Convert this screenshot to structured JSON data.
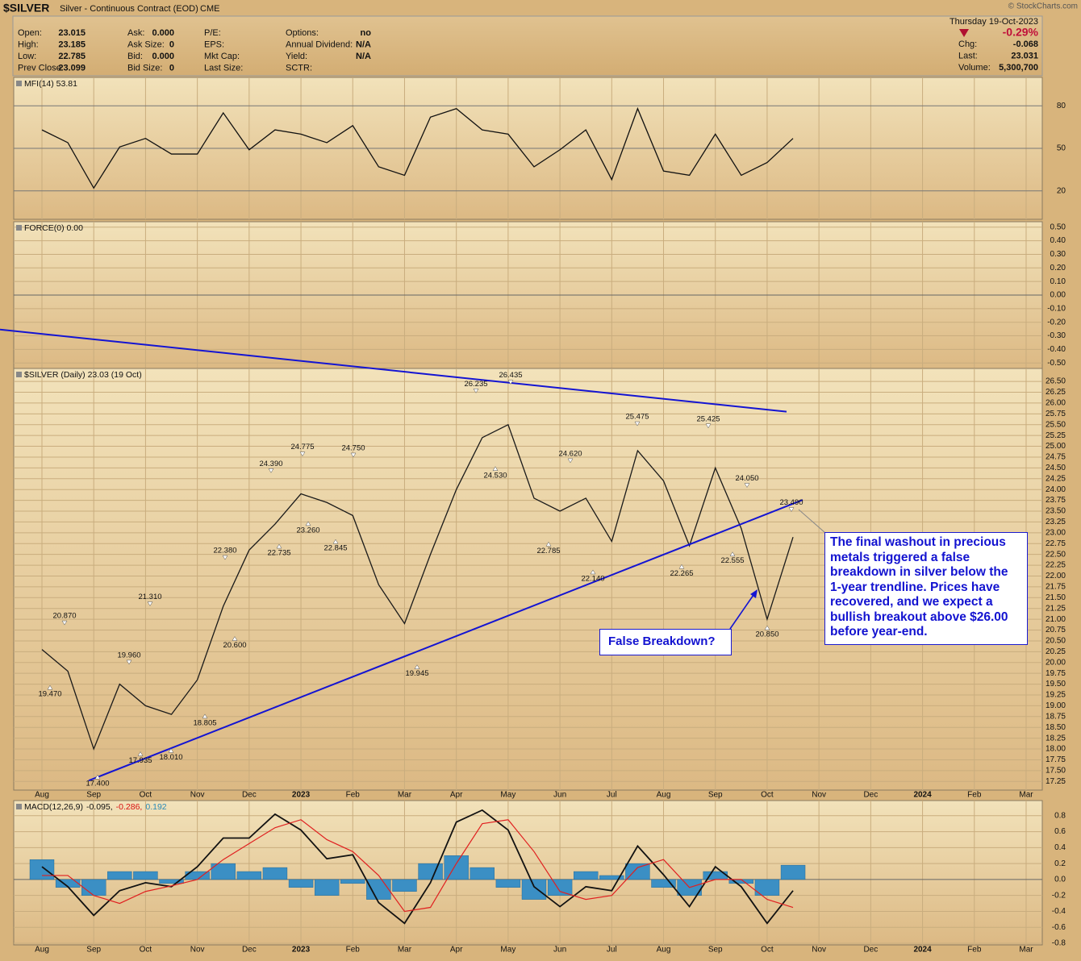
{
  "header": {
    "symbol": "$SILVER",
    "description": "Silver - Continuous Contract (EOD)",
    "exchange": "CME",
    "watermark": "© StockCharts.com",
    "date": "Thursday  19-Oct-2023",
    "change_pct": "-0.29%",
    "fields": [
      [
        {
          "label": "Open:",
          "value": "23.015"
        },
        {
          "label": "High:",
          "value": "23.185"
        },
        {
          "label": "Low:",
          "value": "22.785"
        },
        {
          "label": "Prev Close:",
          "value": "23.099"
        }
      ],
      [
        {
          "label": "Ask:",
          "value": "0.000"
        },
        {
          "label": "Ask Size:",
          "value": "0"
        },
        {
          "label": "Bid:",
          "value": "0.000"
        },
        {
          "label": "Bid Size:",
          "value": "0"
        }
      ],
      [
        {
          "label": "P/E:"
        },
        {
          "label": "EPS:"
        },
        {
          "label": "Mkt Cap:"
        },
        {
          "label": "Last Size:"
        }
      ],
      [
        {
          "label": "Options:",
          "value": "no"
        },
        {
          "label": "Annual Dividend:",
          "value": "N/A"
        },
        {
          "label": "Yield:",
          "value": "N/A"
        },
        {
          "label": "SCTR:"
        }
      ]
    ],
    "quote": [
      {
        "label": "Chg:",
        "value": "-0.068"
      },
      {
        "label": "Last:",
        "value": "23.031"
      },
      {
        "label": "Volume:",
        "value": "5,300,700"
      }
    ]
  },
  "chart_data": [
    {
      "type": "line",
      "title": "MFI(14) 53.81",
      "color": "#111111",
      "values": [
        63,
        54,
        22,
        51,
        57,
        46,
        46,
        75,
        49,
        63,
        60,
        54,
        66,
        37,
        31,
        72,
        78,
        63,
        60,
        37,
        49,
        63,
        28,
        78,
        34,
        31,
        60,
        31,
        40,
        57,
        null,
        null,
        null,
        null,
        null,
        null,
        null,
        null,
        null,
        null
      ],
      "ylim": [
        0,
        100
      ],
      "yticks": [
        20,
        50,
        80
      ],
      "grid": true
    },
    {
      "type": "line",
      "title": "FORCE(0) 0.00",
      "ylim": [
        -0.54,
        0.54
      ],
      "yticks": [
        {
          "value": 0.5,
          "label": "0.50"
        },
        {
          "value": 0.4,
          "label": "0.40"
        },
        {
          "value": 0.3,
          "label": "0.30"
        },
        {
          "value": 0.2,
          "label": "0.20"
        },
        {
          "value": 0.1,
          "label": "0.10"
        },
        {
          "value": 0,
          "label": "0.00"
        },
        {
          "value": -0.1,
          "label": "-0.10"
        },
        {
          "value": -0.2,
          "label": "-0.20"
        },
        {
          "value": -0.3,
          "label": "-0.30"
        },
        {
          "value": -0.4,
          "label": "-0.40"
        },
        {
          "value": -0.5,
          "label": "-0.50"
        }
      ],
      "grid": true
    },
    {
      "type": "line",
      "title": "$SILVER (Daily) 23.03 (19 Oct)",
      "color": "#1a1a1a",
      "categories": [
        "Aug",
        null,
        "Sep",
        null,
        "Oct",
        null,
        "Nov",
        null,
        "Dec",
        null,
        "2023",
        null,
        "Feb",
        null,
        "Mar",
        null,
        "Apr",
        null,
        "May",
        null,
        "Jun",
        null,
        "Jul",
        null,
        "Aug",
        null,
        "Sep",
        null,
        "Oct",
        null,
        "Nov",
        null,
        "Dec",
        null,
        "2024",
        null,
        "Feb",
        null,
        "Mar",
        null
      ],
      "values": [
        20.3,
        19.8,
        18.0,
        19.5,
        19.0,
        18.8,
        19.6,
        21.3,
        22.6,
        23.2,
        23.9,
        23.7,
        23.4,
        21.8,
        20.9,
        22.5,
        24.0,
        25.2,
        25.5,
        23.8,
        23.5,
        23.8,
        22.8,
        24.9,
        24.2,
        22.7,
        24.5,
        23.1,
        21.0,
        22.9,
        null,
        null,
        null,
        null,
        null,
        null,
        null,
        null,
        null,
        null
      ],
      "ylim": [
        17.05,
        26.8
      ],
      "yticks": [
        17.25,
        {
          "value": 17.5,
          "label": "17.50"
        },
        17.75,
        {
          "value": 18,
          "label": "18.00"
        },
        18.25,
        {
          "value": 18.5,
          "label": "18.50"
        },
        18.75,
        {
          "value": 19,
          "label": "19.00"
        },
        19.25,
        {
          "value": 19.5,
          "label": "19.50"
        },
        19.75,
        {
          "value": 20,
          "label": "20.00"
        },
        20.25,
        {
          "value": 20.5,
          "label": "20.50"
        },
        20.75,
        {
          "value": 21,
          "label": "21.00"
        },
        21.25,
        {
          "value": 21.5,
          "label": "21.50"
        },
        21.75,
        {
          "value": 22,
          "label": "22.00"
        },
        22.25,
        {
          "value": 22.5,
          "label": "22.50"
        },
        22.75,
        {
          "value": 23,
          "label": "23.00"
        },
        23.25,
        {
          "value": 23.5,
          "label": "23.50"
        },
        23.75,
        {
          "value": 24,
          "label": "24.00"
        },
        24.25,
        {
          "value": 24.5,
          "label": "24.50"
        },
        24.75,
        {
          "value": 25,
          "label": "25.00"
        },
        25.25,
        {
          "value": 25.5,
          "label": "25.50"
        },
        25.75,
        {
          "value": 26,
          "label": "26.00"
        },
        26.25,
        {
          "value": 26.5,
          "label": "26.50"
        }
      ],
      "grid": true,
      "annotations": [
        {
          "value": 20.87,
          "label": "20.870"
        },
        {
          "value": 19.47,
          "label": "19.470"
        },
        {
          "value": 19.96,
          "label": "19.960"
        },
        {
          "value": 21.31,
          "label": "21.310"
        },
        {
          "value": 17.4,
          "label": "17.400"
        },
        {
          "value": 17.935,
          "label": "17.935"
        },
        {
          "value": 18.01,
          "label": "18.010"
        },
        {
          "value": 18.805,
          "label": "18.805"
        },
        {
          "value": 20.6,
          "label": "20.600"
        },
        {
          "value": 22.38,
          "label": "22.380"
        },
        {
          "value": 24.39,
          "label": "24.390"
        },
        {
          "value": 22.735,
          "label": "22.735"
        },
        {
          "value": 24.775,
          "label": "24.775"
        },
        {
          "value": 23.26,
          "label": "23.260"
        },
        {
          "value": 24.75,
          "label": "24.750"
        },
        {
          "value": 22.845,
          "label": "22.845"
        },
        {
          "value": 19.945,
          "label": "19.945"
        },
        {
          "value": 26.235,
          "label": "26.235"
        },
        {
          "value": 26.435,
          "label": "26.435"
        },
        {
          "value": 24.53,
          "label": "24.530"
        },
        {
          "value": 22.785,
          "label": "22.785"
        },
        {
          "value": 24.62,
          "label": "24.620"
        },
        {
          "value": 22.14,
          "label": "22.140"
        },
        {
          "value": 25.475,
          "label": "25.475"
        },
        {
          "value": 22.265,
          "label": "22.265"
        },
        {
          "value": 25.425,
          "label": "25.425"
        },
        {
          "value": 22.555,
          "label": "22.555"
        },
        {
          "value": 24.05,
          "label": "24.050"
        },
        {
          "value": 20.85,
          "label": "20.850"
        },
        {
          "value": 23.49,
          "label": "23.490"
        }
      ],
      "trendlines": [
        {
          "values": [
            27.7,
            25.8
          ],
          "color": "#1414d2"
        },
        {
          "values": [
            17.27,
            23.76
          ],
          "color": "#1414d2"
        }
      ],
      "callouts": [
        {
          "text": "False Breakdown?"
        },
        {
          "text": "The final washout in precious metals triggered a false breakdown in silver below the 1-year trendline. Prices have recovered, and we expect a bullish breakout above $26.00 before year-end."
        }
      ]
    },
    {
      "type": "macd",
      "title": "MACD(12,26,9)",
      "title_values": [
        {
          "text": "-0.095,",
          "color": "#111111"
        },
        {
          "text": "-0.286,",
          "color": "#d81010"
        },
        {
          "text": "0.192",
          "color": "#2a8ab8"
        }
      ],
      "categories": [
        "Aug",
        null,
        "Sep",
        null,
        "Oct",
        null,
        "Nov",
        null,
        "Dec",
        null,
        "2023",
        null,
        "Feb",
        null,
        "Mar",
        null,
        "Apr",
        null,
        "May",
        null,
        "Jun",
        null,
        "Jul",
        null,
        "Aug",
        null,
        "Sep",
        null,
        "Oct",
        null,
        "Nov",
        null,
        "Dec",
        null,
        "2024",
        null,
        "Feb",
        null,
        "Mar",
        null
      ],
      "series": [
        {
          "kind": "histogram",
          "color": "#3b8fc4",
          "values": [
            0.25,
            -0.1,
            -0.2,
            0.1,
            0.1,
            -0.05,
            0.1,
            0.2,
            0.1,
            0.15,
            -0.1,
            -0.2,
            -0.05,
            -0.25,
            -0.15,
            0.2,
            0.3,
            0.15,
            -0.1,
            -0.25,
            -0.2,
            0.1,
            0.05,
            0.2,
            -0.1,
            -0.2,
            0.1,
            -0.05,
            -0.2,
            0.18,
            null,
            null,
            null,
            null,
            null,
            null,
            null,
            null,
            null,
            null
          ]
        },
        {
          "kind": "line",
          "color": "#111111",
          "values": [
            0.16,
            -0.09,
            -0.45,
            -0.14,
            -0.04,
            -0.09,
            0.16,
            0.52,
            0.52,
            0.82,
            0.62,
            0.26,
            0.31,
            -0.29,
            -0.55,
            -0.04,
            0.72,
            0.87,
            0.62,
            -0.09,
            -0.34,
            -0.09,
            -0.14,
            0.42,
            0.06,
            -0.34,
            0.16,
            -0.09,
            -0.55,
            -0.14,
            null,
            null,
            null,
            null,
            null,
            null,
            null,
            null,
            null,
            null
          ]
        },
        {
          "kind": "line",
          "color": "#e02020",
          "values": [
            0.05,
            0.05,
            -0.2,
            -0.3,
            -0.15,
            -0.08,
            0.0,
            0.25,
            0.45,
            0.65,
            0.75,
            0.5,
            0.35,
            0.05,
            -0.4,
            -0.35,
            0.2,
            0.7,
            0.75,
            0.35,
            -0.15,
            -0.25,
            -0.2,
            0.15,
            0.25,
            -0.1,
            0.0,
            0.0,
            -0.25,
            -0.35,
            null,
            null,
            null,
            null,
            null,
            null,
            null,
            null,
            null,
            null
          ]
        }
      ],
      "ylim": [
        -0.82,
        0.99
      ],
      "yticks": [
        0.8,
        0.6,
        0.4,
        0.2,
        {
          "value": 0,
          "label": "0.0"
        },
        -0.2,
        -0.4,
        -0.6,
        -0.8
      ],
      "grid": true
    }
  ]
}
